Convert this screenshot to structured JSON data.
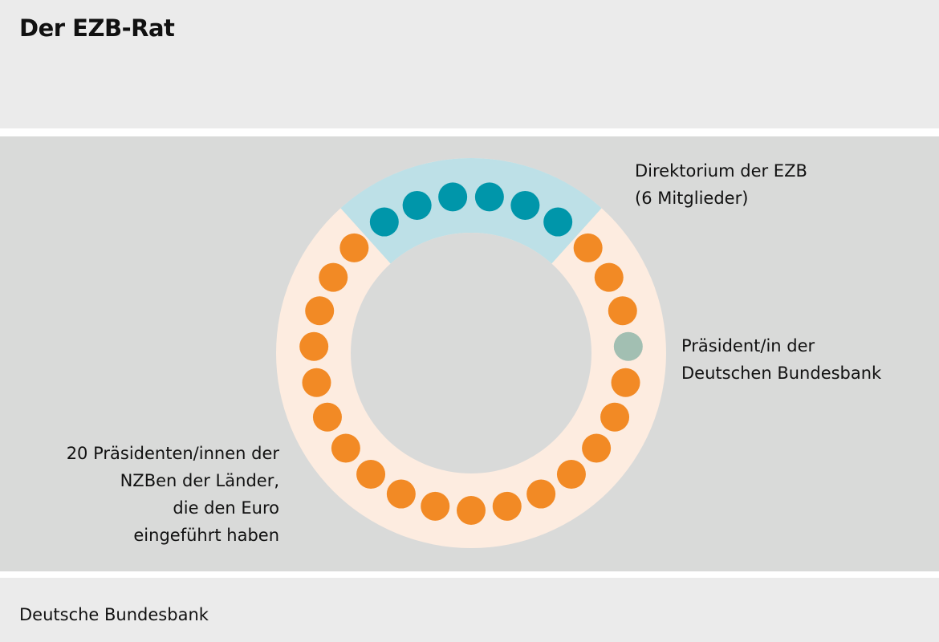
{
  "title": "Der EZB-Rat",
  "labels": {
    "directorate": [
      "Direktorium der EZB",
      "(6 Mitglieder)"
    ],
    "bundesbank_president": [
      "Präsident/in der",
      "Deutschen Bundesbank"
    ],
    "ncb_presidents": [
      "20 Präsidenten/innen der",
      "NZBen der Länder,",
      "die den Euro",
      "eingeführt haben"
    ]
  },
  "counts": {
    "directorate": 6,
    "ncb_presidents": 20,
    "bundesbank": 1
  },
  "source": "Deutsche Bundesbank",
  "colors": {
    "teal": "#0096aa",
    "orange": "#f28a25",
    "green": "#a2bfb2",
    "light_blue": "#bde0e7",
    "peach": "#fdece0",
    "background": "#d9dad9"
  }
}
